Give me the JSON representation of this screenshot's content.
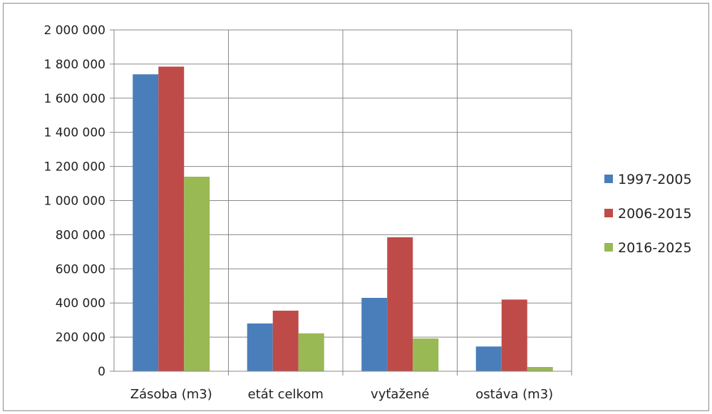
{
  "chart_data": {
    "type": "bar",
    "title": "",
    "xlabel": "",
    "ylabel": "",
    "categories": [
      "Zásoba (m3)",
      "etát celkom",
      "vyťažené",
      "ostáva (m3)"
    ],
    "series": [
      {
        "name": "1997-2005",
        "color": "#4a7ebb",
        "values": [
          1740000,
          280000,
          430000,
          145000
        ]
      },
      {
        "name": "2006-2015",
        "color": "#be4b48",
        "values": [
          1785000,
          355000,
          785000,
          420000
        ]
      },
      {
        "name": "2016-2025",
        "color": "#98b954",
        "values": [
          1140000,
          222000,
          192000,
          25000
        ]
      }
    ],
    "ylim": [
      0,
      2000000
    ],
    "yticks": [
      0,
      200000,
      400000,
      600000,
      800000,
      1000000,
      1200000,
      1400000,
      1600000,
      1800000,
      2000000
    ],
    "ytick_labels": [
      "0",
      "200 000",
      "400 000",
      "600 000",
      "800 000",
      "1 000 000",
      "1 200 000",
      "1 400 000",
      "1 600 000",
      "1 800 000",
      "2 000 000"
    ],
    "grid": true,
    "legend_position": "right"
  }
}
